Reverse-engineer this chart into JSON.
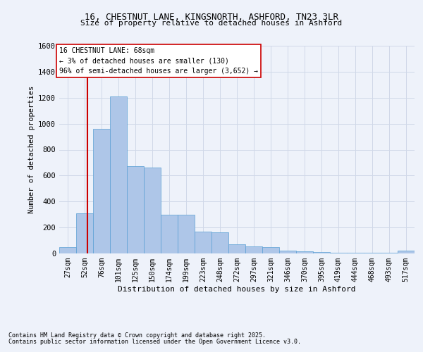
{
  "title1": "16, CHESTNUT LANE, KINGSNORTH, ASHFORD, TN23 3LR",
  "title2": "Size of property relative to detached houses in Ashford",
  "xlabel": "Distribution of detached houses by size in Ashford",
  "ylabel": "Number of detached properties",
  "footer1": "Contains HM Land Registry data © Crown copyright and database right 2025.",
  "footer2": "Contains public sector information licensed under the Open Government Licence v3.0.",
  "annotation_line1": "16 CHESTNUT LANE: 68sqm",
  "annotation_line2": "← 3% of detached houses are smaller (130)",
  "annotation_line3": "96% of semi-detached houses are larger (3,652) →",
  "property_size": 68,
  "bar_left_edges": [
    27,
    52,
    76,
    101,
    125,
    150,
    174,
    199,
    223,
    248,
    272,
    297,
    321,
    346,
    370,
    395,
    419,
    444,
    468,
    493,
    517
  ],
  "bar_widths": [
    25,
    24,
    25,
    24,
    25,
    24,
    25,
    24,
    25,
    24,
    25,
    24,
    25,
    24,
    25,
    24,
    25,
    24,
    25,
    24,
    25
  ],
  "bar_heights": [
    50,
    310,
    960,
    1210,
    670,
    660,
    300,
    300,
    170,
    165,
    70,
    55,
    50,
    20,
    15,
    10,
    5,
    5,
    5,
    5,
    20
  ],
  "bar_color": "#aec6e8",
  "bar_edgecolor": "#5a9fd4",
  "grid_color": "#d0d8e8",
  "bg_color": "#eef2fa",
  "vline_color": "#cc0000",
  "vline_x": 68,
  "annotation_box_color": "#ffffff",
  "annotation_box_edgecolor": "#cc0000",
  "ylim": [
    0,
    1600
  ],
  "yticks": [
    0,
    200,
    400,
    600,
    800,
    1000,
    1200,
    1400,
    1600
  ],
  "xlim_left": 27,
  "xlim_right": 542
}
